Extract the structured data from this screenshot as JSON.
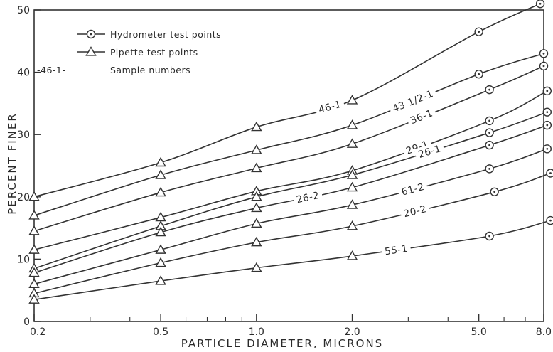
{
  "chart_data": {
    "type": "line",
    "title": "",
    "xlabel": "PARTICLE DIAMETER, MICRONS",
    "ylabel": "PERCENT FINER",
    "xscale": "log",
    "xlim": [
      0.2,
      8.0
    ],
    "ylim": [
      0,
      50
    ],
    "x_ticks": [
      {
        "value": 0.2,
        "label": "0.2"
      },
      {
        "value": 0.5,
        "label": "0.5"
      },
      {
        "value": 1.0,
        "label": "1.0"
      },
      {
        "value": 2.0,
        "label": "2.0"
      },
      {
        "value": 5.0,
        "label": "5.0"
      },
      {
        "value": 8.0,
        "label": "8.0"
      }
    ],
    "y_ticks": [
      {
        "value": 0,
        "label": "0"
      },
      {
        "value": 10,
        "label": "10"
      },
      {
        "value": 20,
        "label": "20"
      },
      {
        "value": 30,
        "label": "30"
      },
      {
        "value": 40,
        "label": "40"
      },
      {
        "value": 50,
        "label": "50"
      }
    ],
    "grid": false,
    "legend": {
      "position": "top-left",
      "entries": [
        {
          "marker": "circle",
          "label": "Hydrometer test points"
        },
        {
          "marker": "triangle",
          "label": "Pipette test points"
        },
        {
          "marker": "sample",
          "sample_text": "-46-1-",
          "label": "Sample numbers"
        }
      ]
    },
    "series": [
      {
        "name": "46-1",
        "label_text": "46-1",
        "label_x": 1.7,
        "points": [
          [
            0.2,
            20.0,
            "triangle"
          ],
          [
            0.5,
            25.5,
            "triangle"
          ],
          [
            1.0,
            31.2,
            "triangle"
          ],
          [
            2.0,
            35.5,
            "triangle"
          ],
          [
            5.0,
            46.5,
            "circle"
          ],
          [
            7.8,
            51.0,
            "circle"
          ]
        ]
      },
      {
        "name": "43 1/2-1",
        "label_text": "43 1/2-1",
        "label_x": 3.1,
        "points": [
          [
            0.2,
            17.0,
            "triangle"
          ],
          [
            0.5,
            23.5,
            "triangle"
          ],
          [
            1.0,
            27.5,
            "triangle"
          ],
          [
            2.0,
            31.5,
            "triangle"
          ],
          [
            5.0,
            39.7,
            "circle"
          ],
          [
            8.0,
            43.0,
            "circle"
          ]
        ]
      },
      {
        "name": "36-1",
        "label_text": "36-1",
        "label_x": 3.3,
        "points": [
          [
            0.2,
            14.5,
            "triangle"
          ],
          [
            0.5,
            20.7,
            "triangle"
          ],
          [
            1.0,
            24.6,
            "triangle"
          ],
          [
            2.0,
            28.5,
            "triangle"
          ],
          [
            5.4,
            37.2,
            "circle"
          ],
          [
            8.0,
            41.0,
            "circle"
          ]
        ]
      },
      {
        "name": "29-1",
        "label_text": "29-1",
        "label_x": 3.2,
        "points": [
          [
            0.2,
            11.5,
            "triangle"
          ],
          [
            0.5,
            16.7,
            "triangle"
          ],
          [
            1.0,
            20.9,
            "triangle"
          ],
          [
            2.0,
            24.2,
            "triangle"
          ],
          [
            5.4,
            32.2,
            "circle"
          ],
          [
            8.2,
            37.0,
            "circle"
          ]
        ]
      },
      {
        "name": "26-1",
        "label_text": "26-1",
        "label_x": 3.5,
        "points": [
          [
            0.2,
            8.5,
            "triangle"
          ],
          [
            0.5,
            15.3,
            "triangle"
          ],
          [
            1.0,
            20.0,
            "triangle"
          ],
          [
            2.0,
            23.5,
            "triangle"
          ],
          [
            5.4,
            30.3,
            "circle"
          ],
          [
            8.2,
            33.6,
            "circle"
          ]
        ]
      },
      {
        "name": "26-2",
        "label_text": "26-2",
        "label_x": 1.45,
        "points": [
          [
            0.2,
            7.8,
            "triangle"
          ],
          [
            0.5,
            14.3,
            "triangle"
          ],
          [
            1.0,
            18.2,
            "triangle"
          ],
          [
            2.0,
            21.5,
            "triangle"
          ],
          [
            5.4,
            28.3,
            "circle"
          ],
          [
            8.2,
            31.5,
            "circle"
          ]
        ]
      },
      {
        "name": "61-2",
        "label_text": "61-2",
        "label_x": 3.1,
        "points": [
          [
            0.2,
            6.0,
            "triangle"
          ],
          [
            0.5,
            11.5,
            "triangle"
          ],
          [
            1.0,
            15.7,
            "triangle"
          ],
          [
            2.0,
            18.7,
            "triangle"
          ],
          [
            5.4,
            24.5,
            "circle"
          ],
          [
            8.2,
            27.7,
            "circle"
          ]
        ]
      },
      {
        "name": "20-2",
        "label_text": "20-2",
        "label_x": 3.15,
        "points": [
          [
            0.2,
            4.5,
            "triangle"
          ],
          [
            0.5,
            9.4,
            "triangle"
          ],
          [
            1.0,
            12.7,
            "triangle"
          ],
          [
            2.0,
            15.3,
            "triangle"
          ],
          [
            5.6,
            20.8,
            "circle"
          ],
          [
            8.4,
            23.8,
            "circle"
          ]
        ]
      },
      {
        "name": "55-1",
        "label_text": "55-1",
        "label_x": 2.75,
        "points": [
          [
            0.2,
            3.5,
            "triangle"
          ],
          [
            0.5,
            6.5,
            "triangle"
          ],
          [
            1.0,
            8.6,
            "triangle"
          ],
          [
            2.0,
            10.5,
            "triangle"
          ],
          [
            5.4,
            13.7,
            "circle"
          ],
          [
            8.4,
            16.2,
            "circle"
          ]
        ]
      }
    ]
  }
}
